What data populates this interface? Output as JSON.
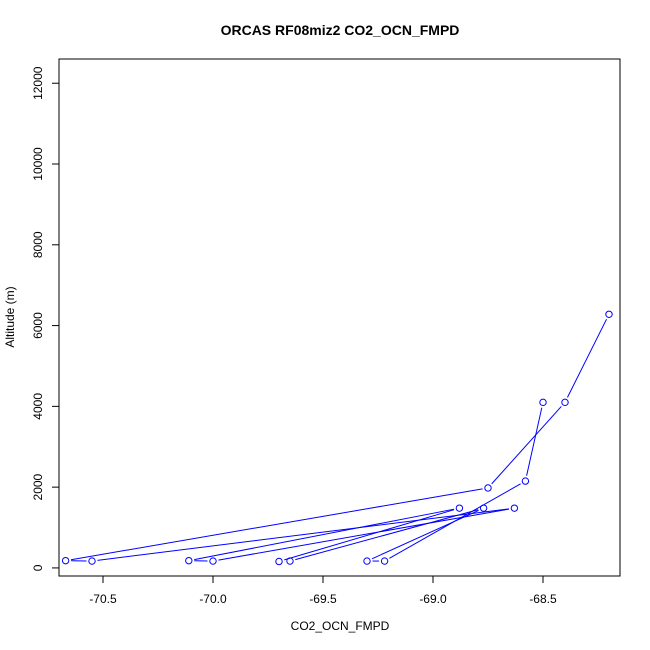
{
  "chart_data": {
    "type": "line",
    "title": "ORCAS RF08miz2 CO2_OCN_FMPD",
    "xlabel": "CO2_OCN_FMPD",
    "ylabel": "Altitude (m)",
    "xlim": [
      -70.7,
      -68.15
    ],
    "ylim": [
      -200,
      12600
    ],
    "x_ticks": [
      -70.5,
      -70.0,
      -69.5,
      -69.0,
      -68.5
    ],
    "x_tick_labels": [
      "-70.5",
      "-70.0",
      "-69.5",
      "-69.0",
      "-68.5"
    ],
    "y_ticks": [
      0,
      2000,
      4000,
      6000,
      8000,
      10000,
      12000
    ],
    "y_tick_labels": [
      "0",
      "2000",
      "4000",
      "6000",
      "8000",
      "10000",
      "12000"
    ],
    "series_color": "#0000ff",
    "grid": false,
    "series": [
      {
        "points": [
          {
            "x": -68.2,
            "y": 6280
          },
          {
            "x": -68.4,
            "y": 4100
          },
          {
            "x": -68.75,
            "y": 1980
          },
          {
            "x": -70.67,
            "y": 180
          },
          {
            "x": -70.55,
            "y": 170
          },
          {
            "x": -68.63,
            "y": 1480
          },
          {
            "x": -70.0,
            "y": 170
          },
          {
            "x": -70.11,
            "y": 180
          },
          {
            "x": -68.88,
            "y": 1480
          },
          {
            "x": -69.7,
            "y": 160
          },
          {
            "x": -69.65,
            "y": 170
          },
          {
            "x": -68.77,
            "y": 1480
          },
          {
            "x": -69.3,
            "y": 170
          },
          {
            "x": -69.22,
            "y": 170
          },
          {
            "x": -68.58,
            "y": 2150
          },
          {
            "x": -68.5,
            "y": 4100
          }
        ]
      }
    ]
  }
}
